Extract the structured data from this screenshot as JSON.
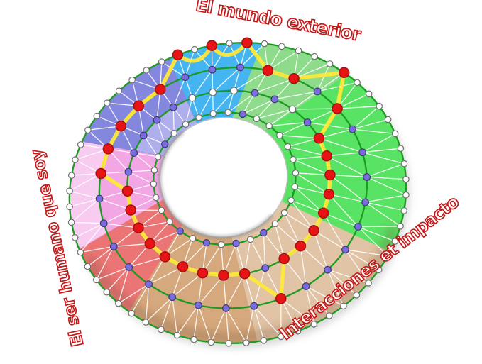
{
  "labels": {
    "top": "El mundo exterior",
    "left": "El ser humano que soy",
    "right": "Interacciones et impacto"
  },
  "label_color": "#C41A1A",
  "wheel": {
    "sectors": [
      {
        "id": "sky",
        "from": 344,
        "to": 378,
        "color": "#45B5F1"
      },
      {
        "id": "green-light",
        "from": 18,
        "to": 50,
        "color": "#8EDB8C"
      },
      {
        "id": "green-vivid",
        "from": 50,
        "to": 125,
        "color": "#59E364"
      },
      {
        "id": "tan-light",
        "from": 125,
        "to": 183,
        "color": "#E1C4A6"
      },
      {
        "id": "tan-dark",
        "from": 183,
        "to": 230,
        "color": "#D5A87D"
      },
      {
        "id": "red",
        "from": 230,
        "to": 260,
        "color": "#EB7575"
      },
      {
        "id": "pink",
        "from": 260,
        "to": 302,
        "color": "#F3A6E4",
        "outer_color": "#F8CCF0"
      },
      {
        "id": "purple",
        "from": 302,
        "to": 344,
        "color": "#8487DE",
        "inner_color": "#AFAFEE"
      }
    ],
    "spokes": {
      "count": 30,
      "red_ring": [
        1,
        1,
        2,
        2,
        1,
        2,
        3,
        3,
        3,
        3,
        3,
        3,
        3,
        3,
        2,
        3,
        3,
        3,
        3,
        3,
        3,
        3,
        3,
        3,
        2,
        2,
        2,
        2,
        2,
        1
      ],
      "purple_ring": [
        2,
        2,
        3,
        3,
        2,
        3,
        2,
        2,
        2,
        2,
        2,
        2,
        2,
        2,
        3,
        2,
        2,
        2,
        2,
        2,
        2,
        2,
        2,
        2,
        3,
        3,
        3,
        3,
        3,
        2
      ]
    },
    "inner_purple_spokes": [
      2,
      13,
      15,
      17,
      19,
      26
    ],
    "colors": {
      "score_node": "#E61414",
      "score_node_stroke": "#A50F0F",
      "secondary_node": "#7A6CE0",
      "secondary_node_stroke": "#3C3C70",
      "plain_node": "#FFFFFF",
      "plain_node_stroke": "#6E6E6E",
      "path": "#FFE83A",
      "ring_line": "#1C9B20",
      "mesh_line": "#FFFFFF"
    }
  }
}
